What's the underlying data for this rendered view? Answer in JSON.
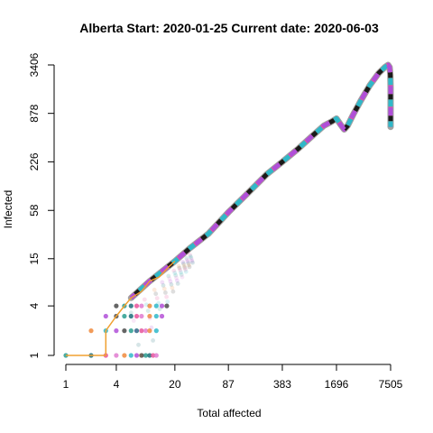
{
  "chart_data": {
    "type": "scatter",
    "title": "Alberta Start:  2020-01-25   Current date:  2020-06-03",
    "xlabel": "Total affected",
    "ylabel": "Infected",
    "x_scale": "log",
    "y_scale": "log",
    "xlim": [
      1,
      7505
    ],
    "ylim": [
      1,
      3406
    ],
    "x_ticks": [
      "1",
      "4",
      "20",
      "87",
      "383",
      "1696",
      "7505"
    ],
    "y_ticks": [
      "1",
      "4",
      "15",
      "58",
      "226",
      "878",
      "3406"
    ],
    "grid": false,
    "legend": "none",
    "colors": [
      "#2a9d8f",
      "#e07bd0",
      "#b04fd8",
      "#1c6f7a",
      "#f08a3c",
      "#4a4a4a",
      "#e8549a",
      "#2fb8c9"
    ],
    "series": [
      {
        "type": "line",
        "color": "#f0a030",
        "points": [
          [
            1,
            1
          ],
          [
            2,
            1
          ],
          [
            3,
            1
          ],
          [
            3,
            2
          ],
          [
            4,
            3
          ],
          [
            5,
            4
          ],
          [
            6,
            5
          ],
          [
            8,
            6
          ],
          [
            10,
            8
          ],
          [
            13,
            9
          ],
          [
            17,
            12
          ],
          [
            20,
            14
          ]
        ]
      },
      {
        "type": "points",
        "points": [
          [
            1,
            1
          ],
          [
            2,
            1
          ],
          [
            3,
            1
          ],
          [
            4,
            1
          ],
          [
            5,
            1
          ],
          [
            6,
            1
          ],
          [
            7,
            1
          ],
          [
            8,
            1
          ],
          [
            9,
            1
          ],
          [
            10,
            1
          ],
          [
            11,
            1
          ],
          [
            12,
            1
          ],
          [
            2,
            2
          ],
          [
            3,
            2
          ],
          [
            4,
            2
          ],
          [
            5,
            2
          ],
          [
            6,
            2
          ],
          [
            7,
            2
          ],
          [
            8,
            2
          ],
          [
            9,
            2
          ],
          [
            10,
            2
          ],
          [
            12,
            2
          ],
          [
            3,
            3
          ],
          [
            4,
            3
          ],
          [
            5,
            3
          ],
          [
            6,
            3
          ],
          [
            7,
            3
          ],
          [
            8,
            3
          ],
          [
            10,
            3
          ],
          [
            12,
            3
          ],
          [
            14,
            3
          ],
          [
            4,
            4
          ],
          [
            5,
            4
          ],
          [
            6,
            4
          ],
          [
            7,
            4
          ],
          [
            8,
            4
          ],
          [
            10,
            4
          ],
          [
            12,
            4
          ],
          [
            14,
            4
          ],
          [
            16,
            4
          ]
        ]
      },
      {
        "type": "trajectory",
        "points": [
          [
            6,
            5
          ],
          [
            10,
            8
          ],
          [
            20,
            14
          ],
          [
            30,
            20
          ],
          [
            50,
            30
          ],
          [
            87,
            55
          ],
          [
            150,
            95
          ],
          [
            250,
            160
          ],
          [
            383,
            226
          ],
          [
            600,
            330
          ],
          [
            900,
            480
          ],
          [
            1200,
            620
          ],
          [
            1500,
            700
          ],
          [
            1696,
            760
          ],
          [
            1900,
            640
          ],
          [
            2100,
            560
          ],
          [
            2300,
            620
          ],
          [
            2700,
            860
          ],
          [
            3300,
            1250
          ],
          [
            4200,
            1900
          ],
          [
            5400,
            2700
          ],
          [
            6400,
            3200
          ],
          [
            7000,
            3406
          ],
          [
            7300,
            3200
          ],
          [
            7450,
            2600
          ],
          [
            7505,
            1800
          ],
          [
            7505,
            1100
          ],
          [
            7505,
            600
          ]
        ]
      }
    ]
  }
}
